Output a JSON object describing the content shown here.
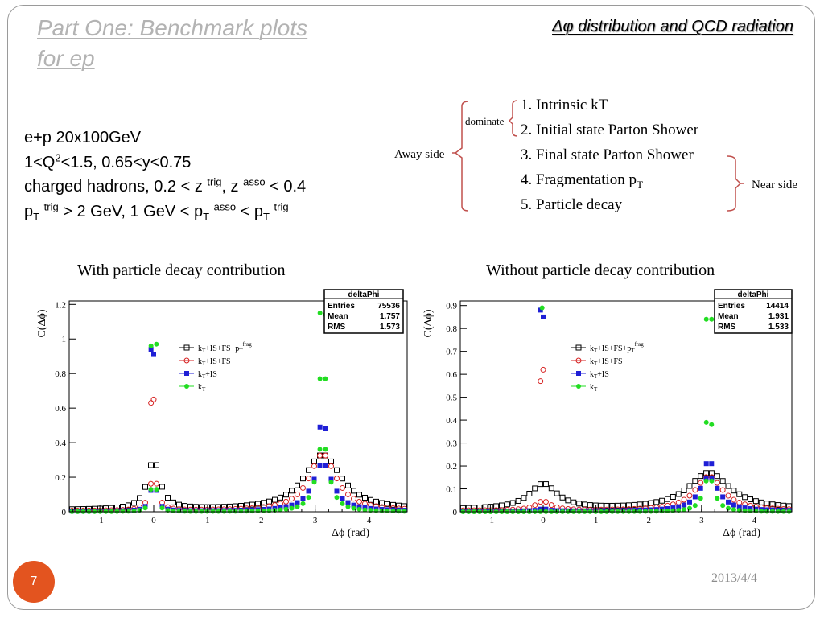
{
  "slide": {
    "title_line1": "Part One: Benchmark plots",
    "title_line2": "for ep",
    "subtitle_symbol": "Δφ",
    "subtitle_text": " distribution and QCD radiation",
    "page_number": "7",
    "date": "2013/4/4"
  },
  "info": {
    "line1": "e+p 20x100GeV",
    "line2_a": "1<Q",
    "line2_sup": "2",
    "line2_b": "<1.5,  0.65<y<0.75",
    "line3_a": "charged hadrons, 0.2 < z ",
    "line3_sup1": "trig",
    "line3_b": ", z ",
    "line3_sup2": "asso",
    "line3_c": " < 0.4",
    "line4_p": "p",
    "line4_sub": "T",
    "line4_sup1": "trig",
    "line4_b": " > 2 GeV, 1 GeV < p",
    "line4_sup2": "asso",
    "line4_c": " < p",
    "line4_sup3": "trig"
  },
  "diagram": {
    "away_side": "Away side",
    "dominate": "dominate",
    "near_side": "Near side",
    "items": [
      "1. Intrinsic kT",
      "2. Initial state Parton Shower",
      "3. Final state Parton Shower",
      "4. Fragmentation p",
      "5. Particle decay"
    ],
    "item4_sub": "T",
    "bracket_color": "#c0504d"
  },
  "plots": {
    "left_caption": "With particle decay contribution",
    "right_caption": "Without particle decay contribution",
    "y_label": "C(Δϕ)",
    "x_label": "Δϕ (rad)",
    "legend": {
      "l1_a": "k",
      "l1_sub": "T",
      "l1_b": "+IS+FS+p",
      "l1_sub2": "T",
      "l1_sup": "frag",
      "l2": "+IS+FS",
      "l3": "+IS"
    },
    "stats_left": {
      "name": "deltaPhi",
      "entries_label": "Entries",
      "entries": "75536",
      "mean_label": "Mean",
      "mean": "1.757",
      "rms_label": "RMS",
      "rms": "1.573"
    },
    "stats_right": {
      "name": "deltaPhi",
      "entries_label": "Entries",
      "entries": "14414",
      "mean_label": "Mean",
      "mean": "1.931",
      "rms_label": "RMS",
      "rms": "1.533"
    }
  },
  "chart_data": [
    {
      "type": "scatter",
      "title": "With particle decay contribution",
      "xlabel": "Δϕ (rad)",
      "ylabel": "C(Δϕ)",
      "xlim": [
        -1.57,
        4.71
      ],
      "ylim": [
        0,
        1.22
      ],
      "xticks": [
        -1,
        0,
        1,
        2,
        3,
        4
      ],
      "yticks": [
        0,
        0.2,
        0.4,
        0.6,
        0.8,
        1,
        1.2
      ],
      "ytick_labels": [
        "0",
        "0.2",
        "0.4",
        "0.6",
        "0.8",
        "1",
        "1.2"
      ],
      "legend_position": "top-center",
      "series": [
        {
          "name": "kT+IS+FS+pT^frag",
          "marker": "open-square",
          "color": "#000000",
          "shape": {
            "near": [
              0,
              0.29,
              0.14
            ],
            "away": [
              3.14,
              0.32,
              0.42
            ],
            "base": 0.01,
            "bins": 60
          }
        },
        {
          "name": "kT+IS+FS",
          "marker": "open-circle",
          "color": "#d62020",
          "shape": {
            "near": [
              0,
              0.22,
              0.08
            ],
            "away": [
              3.14,
              0.33,
              0.3
            ],
            "base": 0.005,
            "bins": 60
          },
          "peaks": [
            [
              -0.05,
              0.63
            ],
            [
              0.0,
              0.65
            ]
          ]
        },
        {
          "name": "kT+IS",
          "marker": "filled-square",
          "color": "#1f1fd6",
          "shape": {
            "near": [
              0,
              0.21,
              0.06
            ],
            "away": [
              3.14,
              0.28,
              0.22
            ],
            "base": 0.003,
            "bins": 60
          },
          "peaks": [
            [
              -0.05,
              0.94
            ],
            [
              0.0,
              0.91
            ],
            [
              3.09,
              0.49
            ],
            [
              3.19,
              0.48
            ]
          ]
        },
        {
          "name": "kT",
          "marker": "filled-circle",
          "color": "#22dd22",
          "shape": {
            "near": [
              0,
              0.35,
              0.04
            ],
            "away": [
              3.14,
              0.42,
              0.13
            ],
            "base": 0.0,
            "bins": 60
          },
          "peaks": [
            [
              -0.05,
              0.96
            ],
            [
              0.05,
              0.97
            ],
            [
              3.09,
              1.15
            ],
            [
              3.19,
              1.14
            ],
            [
              3.09,
              0.77
            ],
            [
              3.19,
              0.77
            ]
          ]
        }
      ]
    },
    {
      "type": "scatter",
      "title": "Without particle decay contribution",
      "xlabel": "Δϕ (rad)",
      "ylabel": "C(Δϕ)",
      "xlim": [
        -1.57,
        4.71
      ],
      "ylim": [
        0,
        0.92
      ],
      "xticks": [
        -1,
        0,
        1,
        2,
        3,
        4
      ],
      "yticks": [
        0,
        0.1,
        0.2,
        0.3,
        0.4,
        0.5,
        0.6,
        0.7,
        0.8,
        0.9
      ],
      "ytick_labels": [
        "0",
        "0.1",
        "0.2",
        "0.3",
        "0.4",
        "0.5",
        "0.6",
        "0.7",
        "0.8",
        "0.9"
      ],
      "legend_position": "top-center",
      "series": [
        {
          "name": "kT+IS+FS+pT^frag",
          "marker": "open-square",
          "color": "#000000",
          "shape": {
            "near": [
              0,
              0.11,
              0.32
            ],
            "away": [
              3.14,
              0.16,
              0.48
            ],
            "base": 0.01,
            "bins": 60
          }
        },
        {
          "name": "kT+IS+FS",
          "marker": "open-circle",
          "color": "#d62020",
          "shape": {
            "near": [
              0,
              0.04,
              0.18
            ],
            "away": [
              3.14,
              0.15,
              0.32
            ],
            "base": 0.005,
            "bins": 60
          },
          "peaks": [
            [
              -0.05,
              0.57
            ],
            [
              0.0,
              0.62
            ]
          ]
        },
        {
          "name": "kT+IS",
          "marker": "filled-square",
          "color": "#1f1fd6",
          "shape": {
            "near": [
              0,
              0.01,
              0.1
            ],
            "away": [
              3.14,
              0.15,
              0.22
            ],
            "base": 0.003,
            "bins": 60
          },
          "peaks": [
            [
              -0.05,
              0.88
            ],
            [
              0.0,
              0.85
            ],
            [
              3.09,
              0.21
            ],
            [
              3.19,
              0.21
            ]
          ]
        },
        {
          "name": "kT",
          "marker": "filled-circle",
          "color": "#22dd22",
          "shape": {
            "near": [
              0,
              0.0,
              0.1
            ],
            "away": [
              3.14,
              0.16,
              0.12
            ],
            "base": 0.0,
            "bins": 60
          },
          "peaks": [
            [
              -0.02,
              0.89
            ],
            [
              3.09,
              0.84
            ],
            [
              3.19,
              0.84
            ],
            [
              3.09,
              0.39
            ],
            [
              3.19,
              0.38
            ]
          ]
        }
      ]
    }
  ]
}
